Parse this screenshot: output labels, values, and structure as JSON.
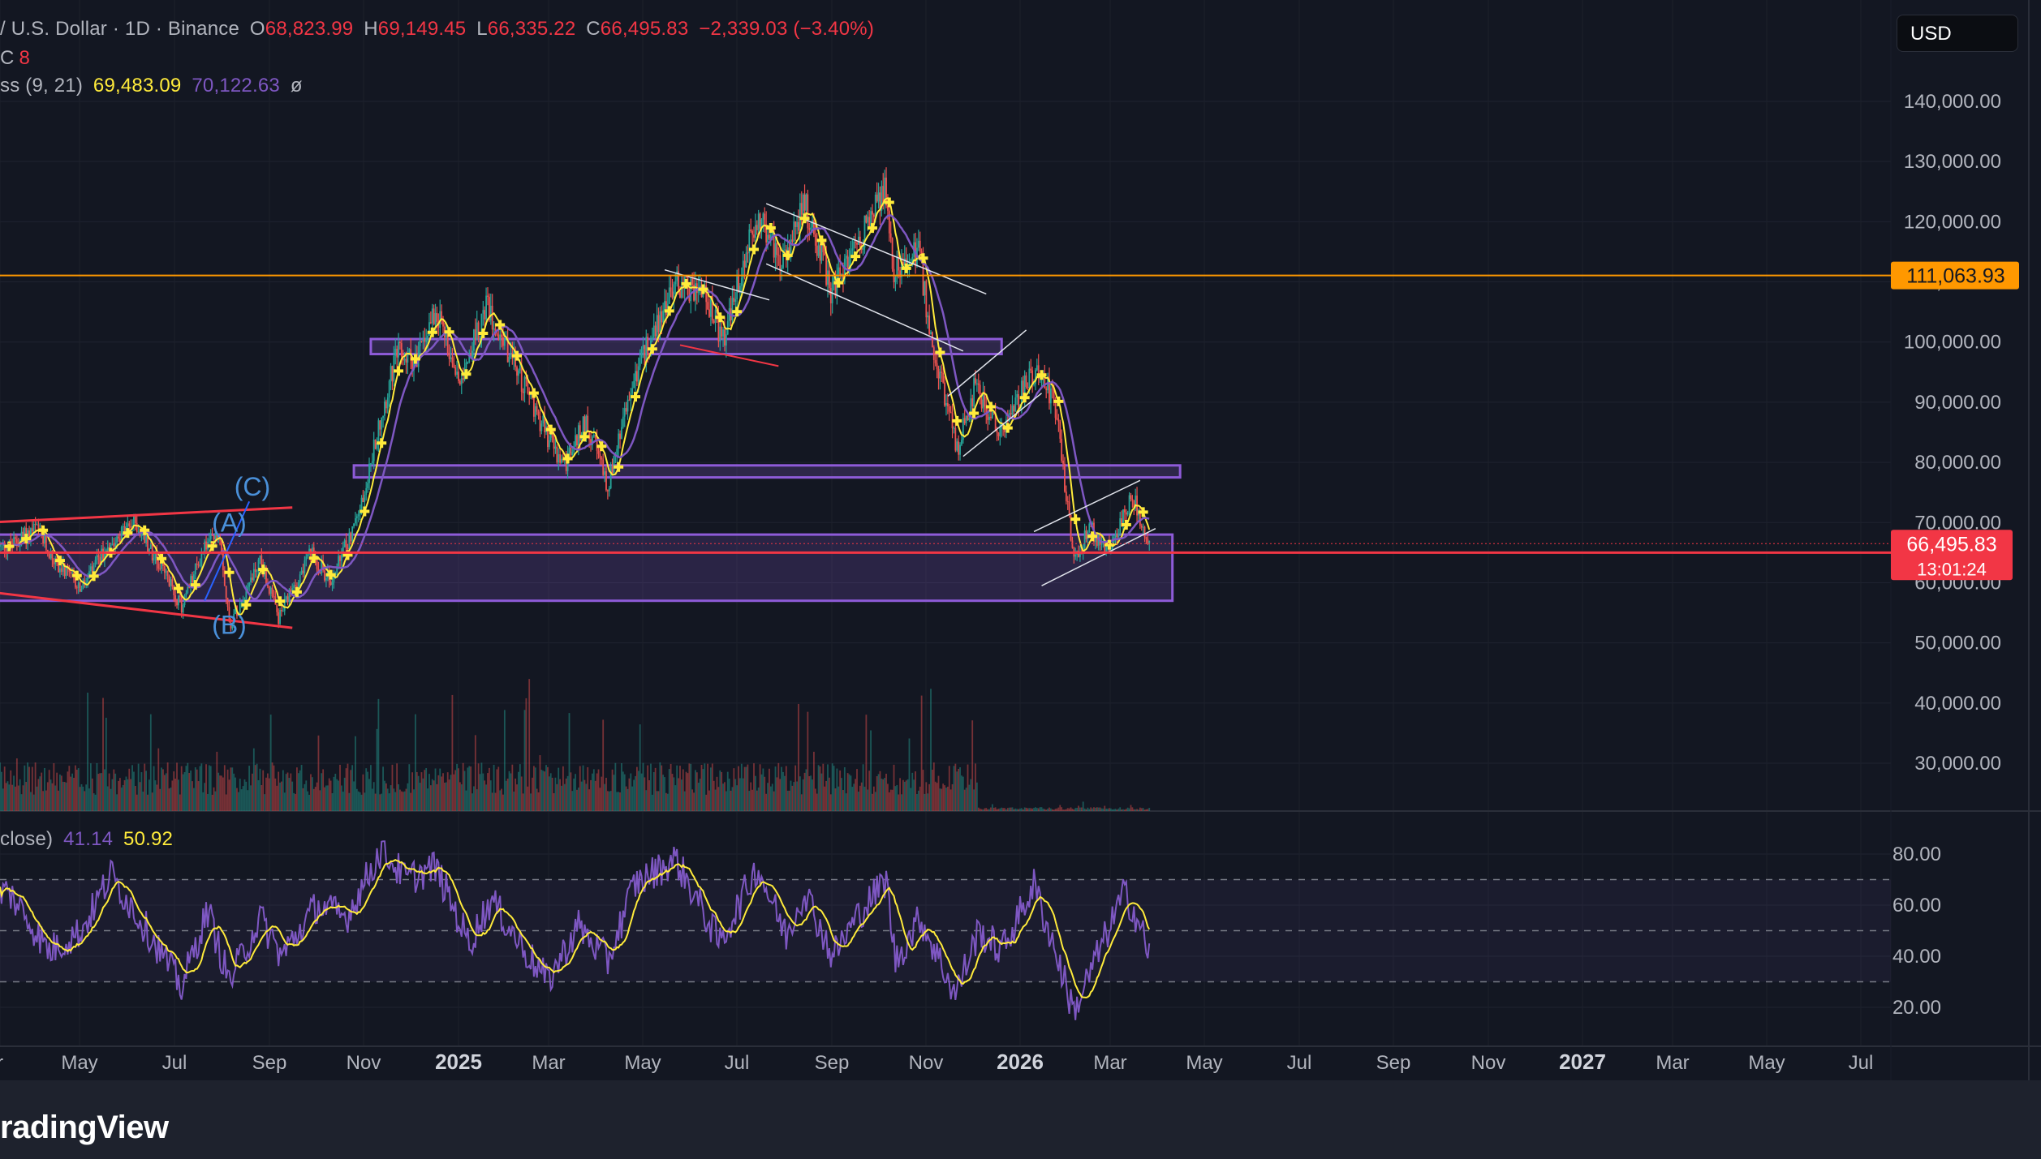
{
  "header": {
    "symbol": "/ U.S. Dollar · 1D · Binance",
    "open_label": "O",
    "open": "68,823.99",
    "high_label": "H",
    "high": "69,149.45",
    "low_label": "L",
    "low": "66,335.22",
    "close_label": "C",
    "close": "66,495.83",
    "change": "−2,339.03 (−3.40%)",
    "line2_label": "C",
    "line2_value": "8",
    "ma_label": "ss (9, 21)",
    "ma_fast": "69,483.09",
    "ma_slow": "70,122.63",
    "ma_icon": "ø"
  },
  "rsi_header": {
    "label": "close)",
    "rsi": "41.14",
    "rsi_ma": "50.92"
  },
  "currency_button": "USD",
  "brand": "radingView",
  "colors": {
    "up": "#26a69a",
    "down": "#ef5350",
    "fast_ma": "#ffeb3b",
    "slow_ma": "#7e57c2",
    "orange": "#ff9800",
    "red_line": "#f23645",
    "box": "#7e57c2",
    "rsi": "#7e57c2",
    "rsi_ma": "#ffeb3b"
  },
  "chart_data": {
    "type": "candlestick",
    "y_axis_ticks": [
      "140,000.00",
      "130,000.00",
      "120,000.00",
      "110,000.00",
      "100,000.00",
      "90,000.00",
      "80,000.00",
      "70,000.00",
      "60,000.00",
      "50,000.00",
      "40,000.00",
      "30,000.00"
    ],
    "y_axis_values": [
      140000,
      130000,
      120000,
      110000,
      100000,
      90000,
      80000,
      70000,
      60000,
      50000,
      40000,
      30000
    ],
    "ylim": [
      21000,
      150000
    ],
    "x_axis_labels": [
      "r",
      "May",
      "Jul",
      "Sep",
      "Nov",
      "2025",
      "Mar",
      "May",
      "Jul",
      "Sep",
      "Nov",
      "2026",
      "Mar",
      "May",
      "Jul",
      "Sep",
      "Nov",
      "2027",
      "Mar",
      "May",
      "Jul"
    ],
    "x_axis_bold": [
      "2025",
      "2026",
      "2027"
    ],
    "price_path": [
      [
        "2024-03-15",
        66000
      ],
      [
        "2024-04-01",
        69000
      ],
      [
        "2024-04-15",
        63000
      ],
      [
        "2024-05-01",
        59000
      ],
      [
        "2024-05-20",
        67000
      ],
      [
        "2024-06-05",
        70000
      ],
      [
        "2024-06-25",
        61000
      ],
      [
        "2024-07-05",
        56000
      ],
      [
        "2024-07-20",
        66000
      ],
      [
        "2024-07-30",
        68000
      ],
      [
        "2024-08-05",
        53000
      ],
      [
        "2024-08-25",
        64000
      ],
      [
        "2024-09-06",
        54000
      ],
      [
        "2024-09-27",
        65000
      ],
      [
        "2024-10-10",
        60000
      ],
      [
        "2024-10-29",
        72000
      ],
      [
        "2024-11-12",
        88000
      ],
      [
        "2024-11-22",
        98000
      ],
      [
        "2024-12-05",
        97000
      ],
      [
        "2024-12-17",
        106000
      ],
      [
        "2025-01-01",
        94000
      ],
      [
        "2025-01-20",
        106000
      ],
      [
        "2025-02-05",
        97000
      ],
      [
        "2025-02-25",
        86000
      ],
      [
        "2025-03-10",
        79000
      ],
      [
        "2025-03-25",
        87000
      ],
      [
        "2025-04-08",
        76000
      ],
      [
        "2025-04-25",
        94000
      ],
      [
        "2025-05-22",
        110000
      ],
      [
        "2025-06-10",
        108000
      ],
      [
        "2025-06-22",
        100000
      ],
      [
        "2025-07-14",
        121000
      ],
      [
        "2025-08-01",
        113000
      ],
      [
        "2025-08-14",
        123000
      ],
      [
        "2025-09-01",
        108000
      ],
      [
        "2025-09-18",
        117000
      ],
      [
        "2025-10-06",
        125000
      ],
      [
        "2025-10-10",
        112000
      ],
      [
        "2025-10-27",
        115000
      ],
      [
        "2025-11-04",
        101000
      ],
      [
        "2025-11-21",
        82000
      ],
      [
        "2025-12-03",
        93000
      ],
      [
        "2025-12-18",
        85000
      ],
      [
        "2026-01-05",
        93000
      ],
      [
        "2026-01-14",
        96000
      ],
      [
        "2026-01-25",
        88000
      ],
      [
        "2026-02-05",
        63000
      ],
      [
        "2026-02-15",
        69000
      ],
      [
        "2026-03-01",
        65000
      ],
      [
        "2026-03-10",
        72000
      ],
      [
        "2026-03-16",
        74000
      ],
      [
        "2026-03-22",
        68800
      ],
      [
        "2026-03-26",
        66495.83
      ]
    ],
    "fast_ma_value": 69483.09,
    "slow_ma_value": 70122.63,
    "horizontal_levels": [
      {
        "label": "111,063.93",
        "value": 111063.93,
        "color": "#ff9800"
      },
      {
        "label": "66,495.83",
        "value": 66495.83,
        "sub": "13:01:24",
        "color": "#f23645"
      }
    ],
    "red_support_value": 65000,
    "zones": [
      {
        "from": "2024-11-05",
        "to": "2025-12-20",
        "low": 98000,
        "high": 100500
      },
      {
        "from": "2024-10-25",
        "to": "2026-04-15",
        "low": 77500,
        "high": 79500
      },
      {
        "from": "2024-03-01",
        "to": "2026-04-10",
        "low": 57000,
        "high": 68000
      }
    ],
    "wave_labels": [
      {
        "text": "(C)",
        "date": "2024-08-20",
        "value": 74500
      },
      {
        "text": "(A)",
        "date": "2024-08-05",
        "value": 68500
      },
      {
        "text": "(B)",
        "date": "2024-08-05",
        "value": 51500
      }
    ],
    "rsi": {
      "label": "close)",
      "value": 41.14,
      "ma_value": 50.92,
      "ticks": [
        "80.00",
        "60.00",
        "40.00",
        "20.00"
      ],
      "tick_values": [
        80,
        60,
        40,
        20
      ],
      "levels": [
        70,
        50,
        30
      ],
      "ylim": [
        10,
        90
      ],
      "path": [
        [
          "2024-03-15",
          65
        ],
        [
          "2024-04-10",
          42
        ],
        [
          "2024-05-01",
          50
        ],
        [
          "2024-05-20",
          72
        ],
        [
          "2024-06-15",
          48
        ],
        [
          "2024-07-05",
          28
        ],
        [
          "2024-07-22",
          58
        ],
        [
          "2024-08-05",
          30
        ],
        [
          "2024-08-25",
          55
        ],
        [
          "2024-09-08",
          40
        ],
        [
          "2024-10-01",
          60
        ],
        [
          "2024-10-20",
          55
        ],
        [
          "2024-11-12",
          82
        ],
        [
          "2024-11-28",
          70
        ],
        [
          "2024-12-17",
          75
        ],
        [
          "2025-01-08",
          45
        ],
        [
          "2025-01-22",
          62
        ],
        [
          "2025-02-10",
          45
        ],
        [
          "2025-02-28",
          30
        ],
        [
          "2025-03-20",
          52
        ],
        [
          "2025-04-08",
          38
        ],
        [
          "2025-04-25",
          68
        ],
        [
          "2025-05-22",
          78
        ],
        [
          "2025-06-20",
          45
        ],
        [
          "2025-07-14",
          75
        ],
        [
          "2025-08-02",
          48
        ],
        [
          "2025-08-14",
          66
        ],
        [
          "2025-09-01",
          40
        ],
        [
          "2025-09-20",
          58
        ],
        [
          "2025-10-06",
          70
        ],
        [
          "2025-10-12",
          38
        ],
        [
          "2025-10-28",
          55
        ],
        [
          "2025-11-20",
          25
        ],
        [
          "2025-12-05",
          50
        ],
        [
          "2025-12-20",
          42
        ],
        [
          "2026-01-10",
          68
        ],
        [
          "2026-01-25",
          40
        ],
        [
          "2026-02-05",
          18
        ],
        [
          "2026-02-20",
          40
        ],
        [
          "2026-03-10",
          65
        ],
        [
          "2026-03-18",
          55
        ],
        [
          "2026-03-26",
          41
        ]
      ]
    }
  }
}
